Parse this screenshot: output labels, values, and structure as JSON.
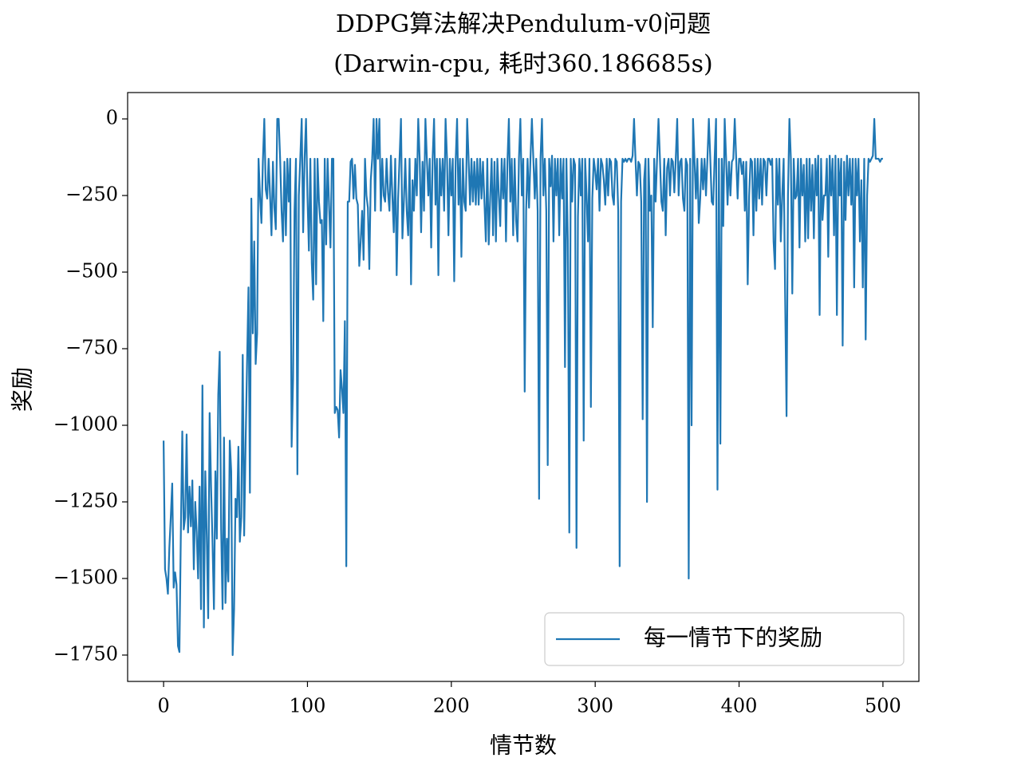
{
  "chart_data": {
    "type": "line",
    "title": "DDPG算法解决Pendulum-v0问题",
    "subtitle": "(Darwin-cpu, 耗时360.186685s)",
    "x_label": "情节数",
    "y_label": "奖励",
    "xlim": [
      -25,
      525
    ],
    "xticks": [
      0,
      100,
      200,
      300,
      400,
      500
    ],
    "ylim": [
      -1836,
      86
    ],
    "yticks": [
      {
        "value": 0,
        "label": "0"
      },
      {
        "value": -250,
        "label": "−250"
      },
      {
        "value": -500,
        "label": "−500"
      },
      {
        "value": -750,
        "label": "−750"
      },
      {
        "value": -1000,
        "label": "−1000"
      },
      {
        "value": -1250,
        "label": "−1250"
      },
      {
        "value": -1500,
        "label": "−1500"
      },
      {
        "value": -1750,
        "label": "−1750"
      }
    ],
    "legend": "lower right",
    "series": [
      {
        "name": "每一情节下的奖励",
        "color": "#1f77b4",
        "values": [
          -1050,
          -1470,
          -1500,
          -1550,
          -1400,
          -1300,
          -1190,
          -1530,
          -1480,
          -1520,
          -1720,
          -1740,
          -1350,
          -1020,
          -1340,
          -1300,
          -1030,
          -1350,
          -1200,
          -1330,
          -1180,
          -1470,
          -1250,
          -1350,
          -1500,
          -1200,
          -1600,
          -870,
          -1660,
          -1150,
          -1360,
          -1630,
          -960,
          -1200,
          -1380,
          -1600,
          -1150,
          -1370,
          -900,
          -760,
          -1340,
          -1600,
          -1040,
          -1580,
          -1370,
          -1510,
          -1050,
          -1150,
          -1750,
          -1600,
          -1240,
          -1300,
          -1070,
          -1380,
          -1300,
          -770,
          -1360,
          -1060,
          -800,
          -550,
          -1220,
          -260,
          -700,
          -400,
          -800,
          -700,
          -130,
          -250,
          -340,
          -140,
          0,
          -230,
          -260,
          -130,
          -250,
          -380,
          -140,
          -290,
          -360,
          0,
          0,
          -130,
          -300,
          -400,
          -140,
          -380,
          -130,
          -270,
          -130,
          -1070,
          -850,
          -300,
          -130,
          -1160,
          -250,
          -130,
          0,
          -370,
          -130,
          0,
          -250,
          -430,
          -130,
          -470,
          -590,
          -130,
          -540,
          -130,
          -270,
          -340,
          -330,
          -660,
          -130,
          -410,
          -130,
          -280,
          -420,
          -130,
          -130,
          -960,
          -940,
          -950,
          -1040,
          -820,
          -880,
          -960,
          -660,
          -1460,
          -270,
          -270,
          -140,
          -130,
          -260,
          -150,
          -260,
          -280,
          -480,
          -400,
          -300,
          -460,
          -130,
          -250,
          -290,
          -490,
          -200,
          -130,
          0,
          -300,
          0,
          -130,
          0,
          -300,
          -130,
          -250,
          -270,
          -130,
          -240,
          -300,
          -120,
          -250,
          -370,
          -130,
          -510,
          -260,
          -130,
          0,
          -390,
          -270,
          -130,
          -300,
          -380,
          -130,
          -540,
          -200,
          -300,
          -130,
          -250,
          0,
          -130,
          -370,
          -140,
          -300,
          0,
          -130,
          -250,
          -130,
          -420,
          -130,
          0,
          -280,
          -130,
          -510,
          -130,
          -250,
          -130,
          -300,
          0,
          -130,
          -380,
          -130,
          -250,
          -130,
          -530,
          -140,
          0,
          -280,
          -130,
          -450,
          -130,
          -270,
          -300,
          0,
          -130,
          -280,
          -130,
          -270,
          -140,
          -280,
          -130,
          -280,
          -130,
          -260,
          -140,
          -270,
          -400,
          -130,
          -410,
          -260,
          -130,
          -380,
          -140,
          -400,
          -130,
          -250,
          -350,
          -130,
          -260,
          -130,
          -400,
          -140,
          0,
          -270,
          -130,
          -380,
          -130,
          -330,
          -400,
          -130,
          0,
          -250,
          -130,
          -890,
          -300,
          -130,
          -290,
          -130,
          0,
          -130,
          -260,
          -130,
          -300,
          -1240,
          -130,
          0,
          -250,
          -130,
          -300,
          -1130,
          -130,
          -220,
          -120,
          -400,
          -130,
          -250,
          -130,
          -380,
          -130,
          -260,
          -130,
          -810,
          -130,
          -400,
          -1350,
          -130,
          -270,
          -130,
          -150,
          -1400,
          -320,
          -130,
          -250,
          -130,
          -1050,
          -130,
          -250,
          -400,
          -130,
          -940,
          -260,
          -130,
          -170,
          -230,
          -130,
          -300,
          -130,
          -150,
          -200,
          -280,
          -130,
          -250,
          -130,
          -140,
          -250,
          -280,
          -130,
          -140,
          -300,
          -1460,
          -270,
          -130,
          -140,
          -130,
          -140,
          -130,
          -130,
          -140,
          -120,
          0,
          -130,
          -250,
          -140,
          -150,
          -270,
          -980,
          -200,
          -130,
          -1250,
          -130,
          -300,
          -250,
          -680,
          -130,
          -270,
          -130,
          0,
          -130,
          -270,
          -300,
          -130,
          -380,
          -160,
          -130,
          -250,
          -130,
          -140,
          -240,
          -130,
          0,
          -250,
          -140,
          -130,
          -260,
          -300,
          -130,
          -150,
          -1500,
          -130,
          -1000,
          0,
          -130,
          -260,
          -130,
          -340,
          -260,
          -130,
          -230,
          -130,
          -250,
          -130,
          0,
          -130,
          -270,
          -280,
          -130,
          0,
          -1210,
          -130,
          -1060,
          -130,
          -350,
          0,
          -130,
          -280,
          -140,
          -250,
          -140,
          -130,
          0,
          -130,
          -260,
          -130,
          -130,
          -180,
          -140,
          -300,
          -140,
          -540,
          -250,
          -130,
          -140,
          -380,
          -130,
          -300,
          -130,
          -260,
          -130,
          -280,
          -130,
          -140,
          -250,
          -130,
          -130,
          -150,
          -130,
          -400,
          -490,
          -130,
          -280,
          -130,
          -400,
          -250,
          -130,
          -570,
          -970,
          -250,
          0,
          -130,
          -570,
          -130,
          -260,
          -250,
          -130,
          -420,
          -130,
          -250,
          -150,
          -400,
          -130,
          -390,
          -130,
          -300,
          -150,
          -390,
          -130,
          -250,
          -120,
          -640,
          -130,
          -330,
          -250,
          -250,
          -130,
          -450,
          -120,
          -250,
          -130,
          -380,
          -120,
          -640,
          -130,
          -250,
          -130,
          -740,
          -140,
          -330,
          -120,
          -250,
          -130,
          -280,
          -130,
          -550,
          -130,
          -250,
          -130,
          -400,
          -200,
          -550,
          -130,
          -720,
          -250,
          -130,
          -140,
          -130,
          -120,
          0,
          -130,
          -130,
          -130,
          -140,
          -130,
          -130
        ]
      }
    ]
  }
}
